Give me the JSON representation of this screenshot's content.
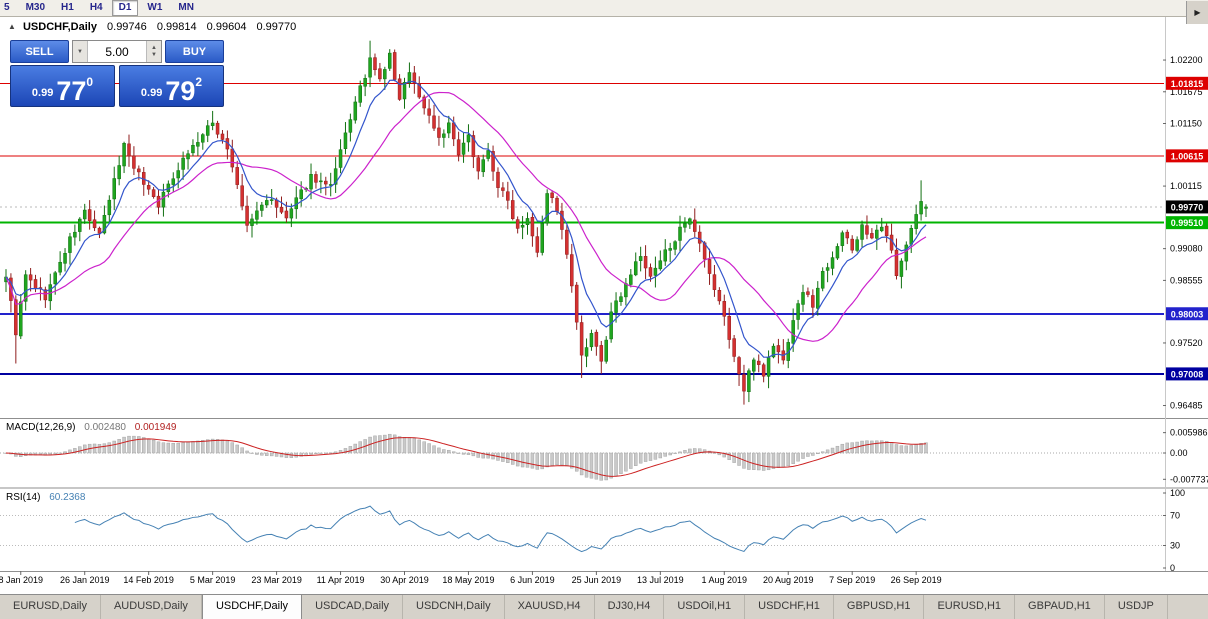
{
  "toolbar": {
    "timeframes": [
      "5",
      "M30",
      "H1",
      "H4",
      "D1",
      "W1",
      "MN"
    ],
    "active": "D1"
  },
  "chart": {
    "title": "USDCHF,Daily",
    "ohlc": {
      "open": "0.99746",
      "high": "0.99814",
      "low": "0.99604",
      "close": "0.99770"
    },
    "trade_panel": {
      "sell_label": "SELL",
      "buy_label": "BUY",
      "volume": "5.00",
      "sell_small": "0.99",
      "sell_big": "77",
      "sell_sup": "0",
      "buy_small": "0.99",
      "buy_big": "79",
      "buy_sup": "2"
    }
  },
  "indicators": {
    "macd_name": "MACD(12,26,9)",
    "macd_main": "0.002480",
    "macd_signal": "0.001949",
    "rsi_name": "RSI(14)",
    "rsi_value": "60.2368"
  },
  "chart_data": {
    "type": "candlestick",
    "symbol": "USDCHF",
    "timeframe": "Daily",
    "colors": {
      "up": "#1fa51f",
      "up_stroke": "#116f11",
      "down": "#d43030",
      "down_stroke": "#8f1d1d",
      "ma_fast": "#3355cc",
      "ma_slow": "#cc22cc",
      "macd_hist": "#c9c9c9",
      "macd_signal": "#cc2222",
      "rsi_line": "#4682b4"
    },
    "y_axis": {
      "min": 0.9632,
      "max": 1.0273,
      "ticks": [
        "1.02200",
        "1.01675",
        "1.01150",
        "1.00115",
        "0.99080",
        "0.98555",
        "0.97520",
        "0.96485"
      ]
    },
    "h_lines": [
      {
        "price": 1.01815,
        "label": "1.01815",
        "color": "#dd0000",
        "width": 1
      },
      {
        "price": 1.00615,
        "label": "1.00615",
        "color": "#dd0000",
        "width": 1
      },
      {
        "price": 0.9951,
        "label": "0.99510",
        "color": "#00b400",
        "width": 2
      },
      {
        "price": 0.98003,
        "label": "0.98003",
        "color": "#2222cc",
        "width": 2
      },
      {
        "price": 0.97008,
        "label": "0.97008",
        "color": "#0000a0",
        "width": 2
      }
    ],
    "current_price": {
      "value": 0.9977,
      "label": "0.99770",
      "color": "#000000"
    },
    "x_axis": {
      "labels": [
        {
          "i": 3,
          "t": "8 Jan 2019"
        },
        {
          "i": 16,
          "t": "26 Jan 2019"
        },
        {
          "i": 29,
          "t": "14 Feb 2019"
        },
        {
          "i": 42,
          "t": "5 Mar 2019"
        },
        {
          "i": 55,
          "t": "23 Mar 2019"
        },
        {
          "i": 68,
          "t": "11 Apr 2019"
        },
        {
          "i": 81,
          "t": "30 Apr 2019"
        },
        {
          "i": 94,
          "t": "18 May 2019"
        },
        {
          "i": 107,
          "t": "6 Jun 2019"
        },
        {
          "i": 120,
          "t": "25 Jun 2019"
        },
        {
          "i": 133,
          "t": "13 Jul 2019"
        },
        {
          "i": 146,
          "t": "1 Aug 2019"
        },
        {
          "i": 159,
          "t": "20 Aug 2019"
        },
        {
          "i": 172,
          "t": "7 Sep 2019"
        },
        {
          "i": 185,
          "t": "26 Sep 2019"
        }
      ]
    },
    "candles": {
      "count": 188,
      "close_path": [
        [
          0,
          0.9865
        ],
        [
          2,
          0.977
        ],
        [
          4,
          0.9862
        ],
        [
          8,
          0.9828
        ],
        [
          13,
          0.9922
        ],
        [
          16,
          0.997
        ],
        [
          19,
          0.9928
        ],
        [
          24,
          1.008
        ],
        [
          27,
          1.003
        ],
        [
          31,
          0.9982
        ],
        [
          36,
          1.0058
        ],
        [
          42,
          1.0115
        ],
        [
          45,
          1.0075
        ],
        [
          49,
          0.9945
        ],
        [
          53,
          0.9992
        ],
        [
          57,
          0.9958
        ],
        [
          62,
          1.0028
        ],
        [
          66,
          1.0008
        ],
        [
          70,
          1.0125
        ],
        [
          74,
          1.0218
        ],
        [
          76,
          1.0185
        ],
        [
          78,
          1.0228
        ],
        [
          80,
          1.0152
        ],
        [
          82,
          1.0205
        ],
        [
          84,
          1.0158
        ],
        [
          86,
          1.0128
        ],
        [
          88,
          1.0092
        ],
        [
          90,
          1.0112
        ],
        [
          92,
          1.0062
        ],
        [
          94,
          1.0092
        ],
        [
          96,
          1.004
        ],
        [
          98,
          1.0068
        ],
        [
          100,
          1.0012
        ],
        [
          102,
          0.9986
        ],
        [
          104,
          0.9942
        ],
        [
          106,
          0.9962
        ],
        [
          108,
          0.9906
        ],
        [
          110,
          1.0002
        ],
        [
          112,
          0.9974
        ],
        [
          114,
          0.9896
        ],
        [
          116,
          0.9788
        ],
        [
          117,
          0.9726
        ],
        [
          119,
          0.9762
        ],
        [
          121,
          0.9722
        ],
        [
          123,
          0.9798
        ],
        [
          126,
          0.9852
        ],
        [
          129,
          0.9896
        ],
        [
          131,
          0.9858
        ],
        [
          134,
          0.9902
        ],
        [
          137,
          0.9938
        ],
        [
          139,
          0.9952
        ],
        [
          141,
          0.9912
        ],
        [
          143,
          0.9862
        ],
        [
          145,
          0.9822
        ],
        [
          147,
          0.9762
        ],
        [
          149,
          0.97
        ],
        [
          150,
          0.9672
        ],
        [
          152,
          0.973
        ],
        [
          154,
          0.9702
        ],
        [
          156,
          0.9748
        ],
        [
          158,
          0.9722
        ],
        [
          160,
          0.9792
        ],
        [
          162,
          0.9838
        ],
        [
          164,
          0.9816
        ],
        [
          166,
          0.9868
        ],
        [
          168,
          0.9898
        ],
        [
          170,
          0.9934
        ],
        [
          172,
          0.9906
        ],
        [
          174,
          0.9948
        ],
        [
          176,
          0.9922
        ],
        [
          178,
          0.9944
        ],
        [
          180,
          0.9904
        ],
        [
          181,
          0.9868
        ],
        [
          183,
          0.9918
        ],
        [
          185,
          0.9962
        ],
        [
          186,
          0.9985
        ],
        [
          187,
          0.9977
        ]
      ],
      "special_wicks": [
        {
          "i": 2,
          "low": 0.9718
        },
        {
          "i": 74,
          "high": 1.0252
        },
        {
          "i": 78,
          "high": 1.0238
        },
        {
          "i": 117,
          "low": 0.9694
        },
        {
          "i": 121,
          "low": 0.9701
        },
        {
          "i": 150,
          "low": 0.965
        },
        {
          "i": 186,
          "high": 1.0021
        }
      ],
      "last_candle": {
        "open": 0.99746,
        "high": 0.99814,
        "low": 0.99604,
        "close": 0.9977
      }
    },
    "moving_averages": [
      {
        "type": "EMA",
        "period": 8,
        "color": "#3355cc"
      },
      {
        "type": "SMA",
        "period": 20,
        "color": "#cc22cc"
      }
    ],
    "macd": {
      "params": [
        12,
        26,
        9
      ],
      "main": 0.00248,
      "signal": 0.001949,
      "axis": [
        "0.005986",
        "0.00",
        "-0.007737"
      ]
    },
    "rsi": {
      "period": 14,
      "value": 60.2368,
      "axis": [
        "100",
        "70",
        "30",
        "0"
      ],
      "levels": [
        70,
        30
      ]
    }
  },
  "tabs": {
    "items": [
      "EURUSD,Daily",
      "AUDUSD,Daily",
      "USDCHF,Daily",
      "USDCAD,Daily",
      "USDCNH,Daily",
      "XAUUSD,H4",
      "DJ30,H4",
      "USDOil,H1",
      "USDCHF,H1",
      "GBPUSD,H1",
      "EURUSD,H1",
      "GBPAUD,H1",
      "USDJP"
    ],
    "active": "USDCHF,Daily",
    "scroll_right": "▶"
  }
}
